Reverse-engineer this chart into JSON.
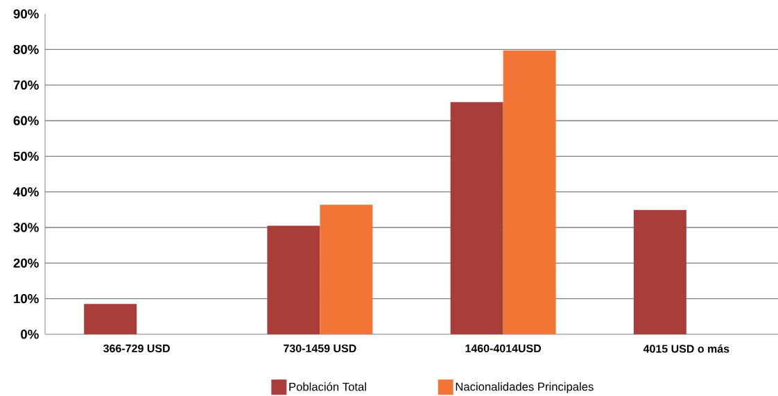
{
  "chart_data": {
    "type": "bar",
    "categories": [
      "366-729 USD",
      "730-1459 USD",
      "1460-4014USD",
      "4015 USD o más"
    ],
    "series": [
      {
        "name": "Población Total",
        "color": "#a93d3a",
        "values": [
          8.5,
          30.5,
          65.2,
          34.9
        ]
      },
      {
        "name": "Nacionalidades Principales",
        "color": "#f37637",
        "values": [
          null,
          36.4,
          79.7,
          null
        ]
      }
    ],
    "ylim": [
      0,
      90
    ],
    "yticks": [
      {
        "value": 0,
        "label": "0%"
      },
      {
        "value": 10,
        "label": "10%"
      },
      {
        "value": 20,
        "label": "20%"
      },
      {
        "value": 30,
        "label": "30%"
      },
      {
        "value": 40,
        "label": "40%"
      },
      {
        "value": 50,
        "label": "50%"
      },
      {
        "value": 60,
        "label": "60%"
      },
      {
        "value": 70,
        "label": "70%"
      },
      {
        "value": 80,
        "label": "80%"
      },
      {
        "value": 90,
        "label": "90%"
      }
    ],
    "grid": "y",
    "legend": "bottom"
  }
}
